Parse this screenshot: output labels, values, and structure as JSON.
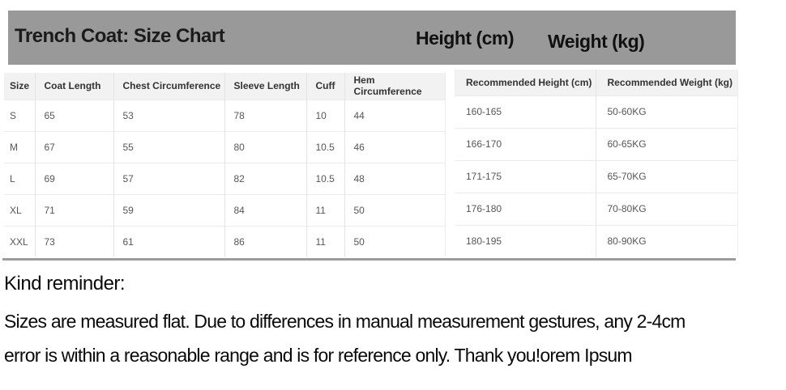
{
  "banner": {
    "title": "Trench Coat: Size Chart",
    "height_label": "Height (cm)",
    "weight_label": "Weight (kg)"
  },
  "size_table": {
    "headers": [
      "Size",
      "Coat Length",
      "Chest Circumference",
      "Sleeve Length",
      "Cuff",
      "Hem Circumference"
    ],
    "rows": [
      [
        "S",
        "65",
        "53",
        "78",
        "10",
        "44"
      ],
      [
        "M",
        "67",
        "55",
        "80",
        "10.5",
        "46"
      ],
      [
        "L",
        "69",
        "57",
        "82",
        "10.5",
        "48"
      ],
      [
        "XL",
        "71",
        "59",
        "84",
        "11",
        "50"
      ],
      [
        "XXL",
        "73",
        "61",
        "86",
        "11",
        "50"
      ]
    ]
  },
  "recommendation_table": {
    "headers": [
      "Recommended Height (cm)",
      "Recommended Weight (kg)"
    ],
    "rows": [
      [
        "160-165",
        "50-60KG"
      ],
      [
        "166-170",
        "60-65KG"
      ],
      [
        "171-175",
        "65-70KG"
      ],
      [
        "176-180",
        "70-80KG"
      ],
      [
        "180-195",
        "80-90KG"
      ]
    ]
  },
  "reminder": {
    "heading": "Kind reminder:",
    "lines": [
      "Sizes are measured flat. Due to differences in manual measurement gestures, any 2-4cm",
      "error is within a reasonable range and is for reference only. Thank you!orem Ipsum"
    ]
  },
  "colors": {
    "banner_bg": "#999999",
    "table_header_bg": "#f2f2f2",
    "divider": "#e4e4e4",
    "bottom_rule": "#9c9c9c"
  }
}
